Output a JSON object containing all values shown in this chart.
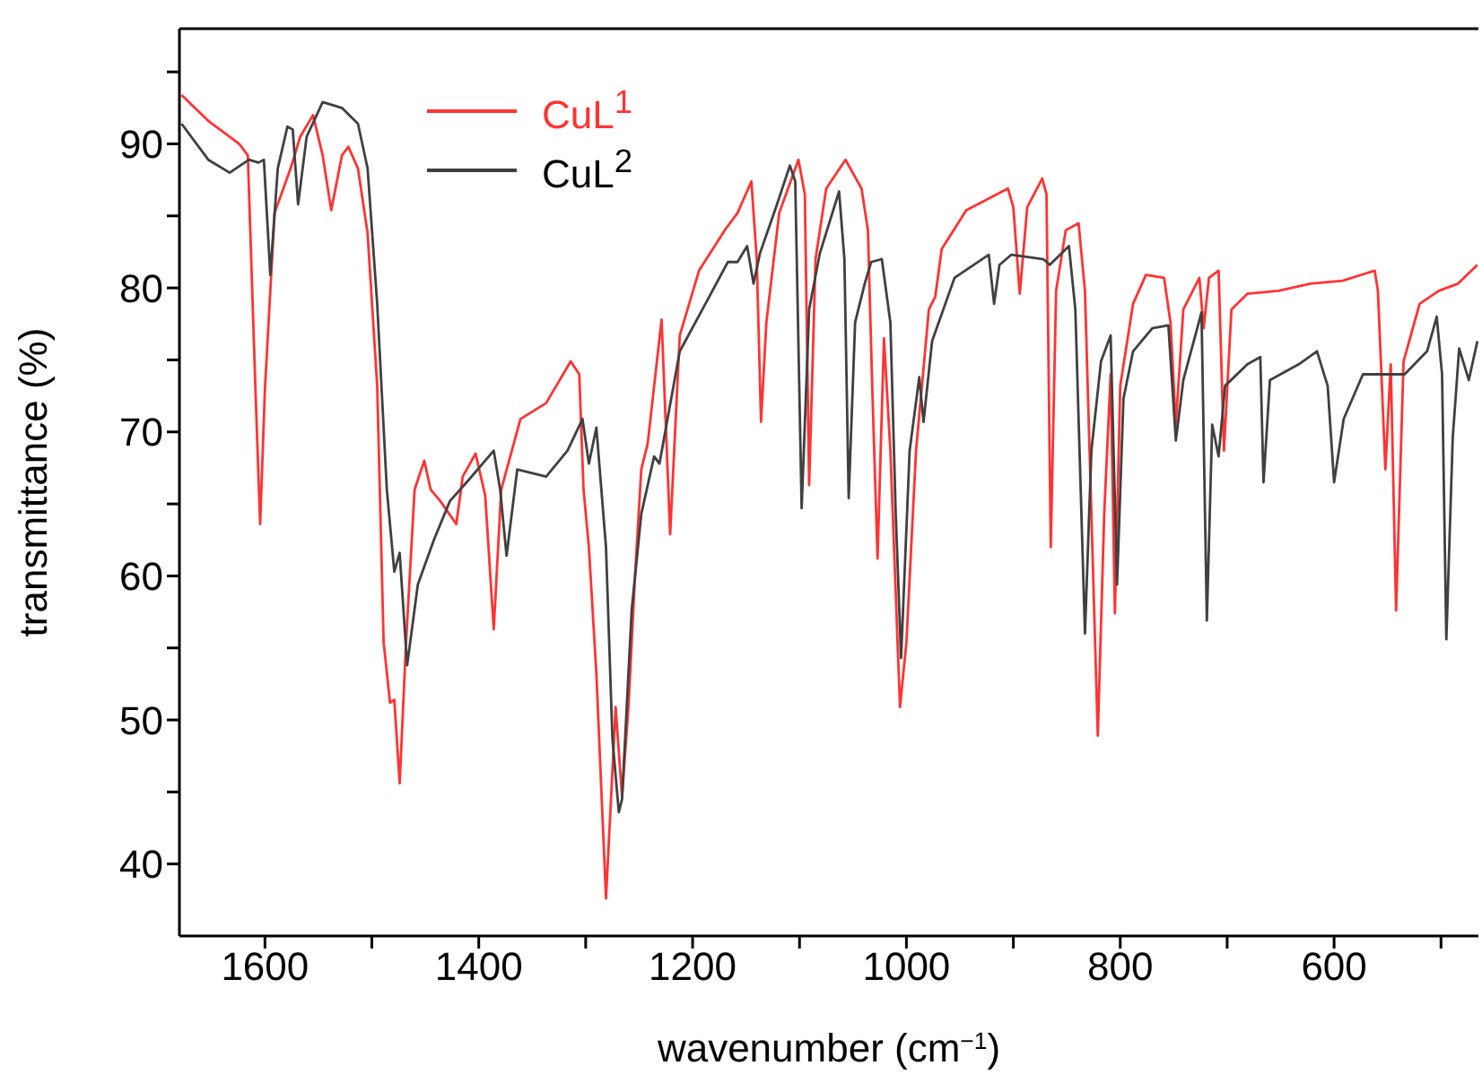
{
  "chart_data": {
    "type": "line",
    "xlabel": "wavenumber (cm$^{−1}$)",
    "ylabel": "transmittance (%)",
    "xlim": [
      1680,
      465
    ],
    "ylim": [
      35,
      98
    ],
    "xticks": [
      1600,
      {
        "value": 1500,
        "label": null
      },
      1400,
      {
        "value": 1300,
        "label": null
      },
      1200,
      {
        "value": 1100,
        "label": null
      },
      1000,
      {
        "value": 900,
        "label": null
      },
      800,
      {
        "value": 700,
        "label": null
      },
      600,
      {
        "value": 500,
        "label": null
      }
    ],
    "yticks": [
      40,
      {
        "value": 45,
        "label": null
      },
      50,
      {
        "value": 55,
        "label": null
      },
      60,
      {
        "value": 65,
        "label": null
      },
      70,
      {
        "value": 75,
        "label": null
      },
      80,
      {
        "value": 85,
        "label": null
      },
      90,
      {
        "value": 95,
        "label": null
      }
    ],
    "legend": "top left",
    "marker": "none",
    "line_style": "solid",
    "series": [
      {
        "name": "CuL$^{1}$",
        "color": "#ff3333",
        "x": [
          1678,
          1653,
          1624,
          1616,
          1609,
          1604.5,
          1600,
          1591,
          1576,
          1567,
          1555,
          1546,
          1538,
          1528,
          1522,
          1513,
          1504,
          1495,
          1489,
          1483,
          1479,
          1474,
          1468,
          1460,
          1451,
          1445,
          1436,
          1421,
          1415,
          1403,
          1394,
          1386,
          1379,
          1361,
          1337,
          1314,
          1306,
          1302,
          1297,
          1290,
          1281,
          1272,
          1266,
          1260,
          1254,
          1248,
          1242,
          1229,
          1221,
          1212,
          1194,
          1170,
          1158,
          1145,
          1140,
          1136,
          1131,
          1119,
          1101,
          1095,
          1091,
          1085,
          1075,
          1057,
          1042,
          1036,
          1032,
          1027,
          1021,
          1015,
          1006,
          1000,
          991,
          979,
          973,
          967,
          944,
          905,
          900,
          894,
          887,
          873,
          869,
          865,
          860,
          851,
          839,
          833,
          827,
          821,
          815,
          809,
          805,
          800,
          788,
          776,
          759,
          753,
          748,
          741,
          726,
          722,
          717,
          708,
          703,
          696,
          681,
          652,
          622,
          592,
          562,
          559,
          552,
          547,
          542,
          535,
          520,
          502,
          484,
          466
        ],
        "values": [
          93.4,
          91.6,
          90.0,
          89.2,
          73.2,
          63.6,
          73,
          85.2,
          88.3,
          90.5,
          92.0,
          89.2,
          85.4,
          89.2,
          89.8,
          88.3,
          83.8,
          73.2,
          55.4,
          51.2,
          51.4,
          45.6,
          55.4,
          66.0,
          68,
          66,
          65.2,
          63.6,
          66.9,
          68.5,
          65.6,
          56.3,
          66,
          70.9,
          72,
          74.9,
          74,
          66,
          62,
          53.2,
          37.6,
          50.9,
          44.7,
          50.9,
          59.8,
          67.4,
          69.2,
          77.8,
          62.9,
          76.7,
          81.2,
          84,
          85.2,
          87.4,
          82,
          70.7,
          77.6,
          85.2,
          88.9,
          86.5,
          66.3,
          82,
          86.9,
          88.9,
          86.9,
          84,
          73.2,
          61.2,
          76.5,
          68.7,
          50.9,
          55.4,
          68.7,
          78.5,
          79.4,
          82.7,
          85.4,
          86.9,
          85.6,
          79.6,
          85.6,
          87.6,
          86.5,
          62,
          79.8,
          84,
          84.5,
          79.8,
          64.3,
          48.9,
          64.3,
          74.0,
          57.4,
          73.2,
          78.9,
          80.9,
          80.7,
          77.6,
          70.5,
          78.5,
          80.7,
          77.2,
          80.7,
          81.2,
          68.7,
          78.5,
          79.6,
          79.8,
          80.3,
          80.5,
          81.2,
          79.8,
          67.4,
          74.7,
          57.6,
          74.9,
          78.9,
          79.8,
          80.3,
          81.6
        ]
      },
      {
        "name": "CuL$^{2}$",
        "color": "#404040",
        "x": [
          1678,
          1653,
          1633,
          1615,
          1606,
          1601,
          1595,
          1588,
          1579,
          1574,
          1569,
          1561,
          1546,
          1528,
          1513,
          1504,
          1495,
          1486,
          1479,
          1474,
          1467,
          1457,
          1442,
          1427,
          1409,
          1386,
          1380,
          1374,
          1364,
          1337,
          1317,
          1303,
          1297,
          1290,
          1281,
          1275,
          1269,
          1266,
          1257,
          1248,
          1236,
          1231,
          1212,
          1188,
          1167,
          1158,
          1149,
          1143,
          1137,
          1122,
          1109,
          1104,
          1098,
          1091,
          1081,
          1063,
          1058,
          1054,
          1048,
          1039,
          1033,
          1023,
          1015,
          1010,
          1005,
          997,
          988,
          984,
          976,
          955,
          923,
          918,
          913,
          902,
          872,
          866,
          848,
          842,
          833,
          827,
          818,
          809,
          803,
          797,
          788,
          770,
          755,
          748,
          741,
          724,
          719,
          714,
          708,
          702,
          681,
          669,
          666,
          660,
          633,
          616,
          606,
          600,
          591,
          573,
          549,
          534,
          513,
          504,
          499,
          495,
          489,
          483,
          474,
          466
        ],
        "values": [
          91.4,
          88.9,
          88.0,
          88.9,
          88.7,
          88.9,
          80.9,
          88.3,
          91.2,
          91,
          85.8,
          90.5,
          92.9,
          92.5,
          91.4,
          88.3,
          78.9,
          66,
          60.3,
          61.6,
          53.8,
          59.4,
          62.5,
          65.2,
          66.7,
          68.7,
          66,
          61.4,
          67.4,
          66.9,
          68.7,
          70.9,
          67.8,
          70.3,
          62,
          48.7,
          43.6,
          44.5,
          57.6,
          64.3,
          68.3,
          67.8,
          75.6,
          78.9,
          81.8,
          81.8,
          82.9,
          80.3,
          82.4,
          85.6,
          88.5,
          87.4,
          64.7,
          78.5,
          82.4,
          86.7,
          82,
          65.4,
          77.6,
          80.3,
          81.8,
          82,
          77.6,
          64.3,
          54.3,
          68.7,
          73.8,
          70.7,
          76.3,
          80.7,
          82.3,
          78.9,
          81.6,
          82.3,
          82,
          81.6,
          82.9,
          78.5,
          56.0,
          68.7,
          74.9,
          76.7,
          59.4,
          72.3,
          75.6,
          77.2,
          77.4,
          69.4,
          73.6,
          78.3,
          56.9,
          70.5,
          68.3,
          73.2,
          74.7,
          75.2,
          66.5,
          73.6,
          74.7,
          75.6,
          73.2,
          66.5,
          70.9,
          74,
          74,
          74,
          75.6,
          78,
          74,
          55.6,
          69.6,
          75.8,
          73.6,
          76.3
        ]
      }
    ]
  }
}
